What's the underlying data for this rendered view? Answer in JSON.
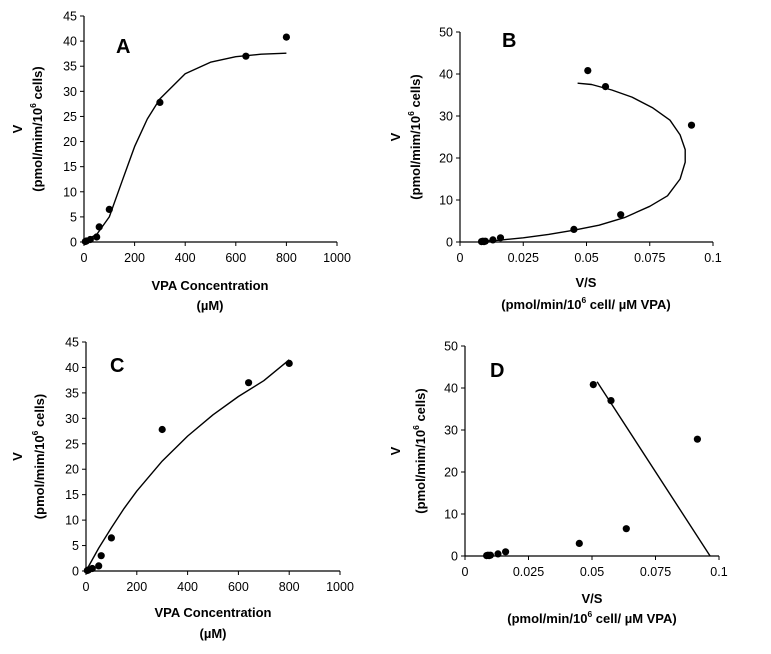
{
  "chart_data": [
    {
      "panel": "A",
      "type": "scatter",
      "letter": "A",
      "xlabel": {
        "main": "VPA Concentration",
        "unit": "(µM)"
      },
      "ylabel": {
        "name": "V",
        "unit_pre": "(pmol/mim/10",
        "unit_sup": "6",
        "unit_post": " cells)"
      },
      "xlim": [
        0,
        1000
      ],
      "ylim": [
        0,
        45
      ],
      "xticks": [
        0,
        200,
        400,
        600,
        800,
        1000
      ],
      "yticks": [
        0,
        5,
        10,
        15,
        20,
        25,
        30,
        35,
        40,
        45
      ],
      "points": [
        [
          5,
          0.1
        ],
        [
          10,
          0.2
        ],
        [
          25,
          0.5
        ],
        [
          50,
          1.0
        ],
        [
          60,
          3.0
        ],
        [
          100,
          6.5
        ],
        [
          300,
          27.8
        ],
        [
          640,
          37.0
        ],
        [
          800,
          40.8
        ]
      ],
      "fit_curve": [
        [
          0,
          0.2
        ],
        [
          50,
          1.5
        ],
        [
          100,
          5
        ],
        [
          150,
          12
        ],
        [
          200,
          19
        ],
        [
          250,
          24.5
        ],
        [
          300,
          28.5
        ],
        [
          400,
          33.5
        ],
        [
          500,
          35.8
        ],
        [
          600,
          36.9
        ],
        [
          700,
          37.4
        ],
        [
          800,
          37.6
        ]
      ]
    },
    {
      "panel": "B",
      "type": "scatter",
      "letter": "B",
      "xlabel": {
        "main": "V/S",
        "unit_pre": "(pmol/min/10",
        "unit_sup": "6",
        "unit_post": " cell/ µM VPA)"
      },
      "ylabel": {
        "name": "V",
        "unit_pre": "(pmol/mim/10",
        "unit_sup": "6",
        "unit_post": " cells)"
      },
      "xlim": [
        0,
        0.1
      ],
      "ylim": [
        0,
        50
      ],
      "xticks": [
        0,
        0.025,
        0.05,
        0.075,
        0.1
      ],
      "yticks": [
        0,
        10,
        20,
        30,
        40,
        50
      ],
      "points": [
        [
          0.0085,
          0.1
        ],
        [
          0.009,
          0.2
        ],
        [
          0.0095,
          0.1
        ],
        [
          0.01,
          0.2
        ],
        [
          0.013,
          0.5
        ],
        [
          0.016,
          1.0
        ],
        [
          0.045,
          3.0
        ],
        [
          0.0505,
          40.8
        ],
        [
          0.0575,
          37.0
        ],
        [
          0.0915,
          27.8
        ],
        [
          0.0635,
          6.5
        ]
      ],
      "fit_curve": [
        [
          0.008,
          0.2
        ],
        [
          0.015,
          0.4
        ],
        [
          0.025,
          1.0
        ],
        [
          0.035,
          1.8
        ],
        [
          0.045,
          2.8
        ],
        [
          0.055,
          4.0
        ],
        [
          0.065,
          5.8
        ],
        [
          0.075,
          8.5
        ],
        [
          0.082,
          11
        ],
        [
          0.087,
          15
        ],
        [
          0.089,
          19
        ],
        [
          0.089,
          22
        ],
        [
          0.087,
          25.5
        ],
        [
          0.083,
          29
        ],
        [
          0.076,
          32
        ],
        [
          0.068,
          34.5
        ],
        [
          0.06,
          36.2
        ],
        [
          0.052,
          37.5
        ],
        [
          0.0465,
          37.8
        ]
      ]
    },
    {
      "panel": "C",
      "type": "scatter",
      "letter": "C",
      "xlabel": {
        "main": "VPA Concentration",
        "unit": "(µM)"
      },
      "ylabel": {
        "name": "V",
        "unit_pre": "(pmol/mim/10",
        "unit_sup": "6",
        "unit_post": " cells)"
      },
      "xlim": [
        0,
        1000
      ],
      "ylim": [
        0,
        45
      ],
      "xticks": [
        0,
        200,
        400,
        600,
        800,
        1000
      ],
      "yticks": [
        0,
        5,
        10,
        15,
        20,
        25,
        30,
        35,
        40,
        45
      ],
      "points": [
        [
          5,
          0.1
        ],
        [
          10,
          0.2
        ],
        [
          25,
          0.5
        ],
        [
          50,
          1.0
        ],
        [
          60,
          3.0
        ],
        [
          100,
          6.5
        ],
        [
          300,
          27.8
        ],
        [
          640,
          37.0
        ],
        [
          800,
          40.8
        ]
      ],
      "fit_curve": [
        [
          0,
          0
        ],
        [
          50,
          4.5
        ],
        [
          100,
          8.5
        ],
        [
          150,
          12.3
        ],
        [
          200,
          15.7
        ],
        [
          300,
          21.6
        ],
        [
          400,
          26.5
        ],
        [
          500,
          30.7
        ],
        [
          600,
          34.3
        ],
        [
          700,
          37.4
        ],
        [
          800,
          41.5
        ]
      ]
    },
    {
      "panel": "D",
      "type": "scatter",
      "letter": "D",
      "xlabel": {
        "main": "V/S",
        "unit_pre": "(pmol/min/10",
        "unit_sup": "6",
        "unit_post": " cell/ µM VPA)"
      },
      "ylabel": {
        "name": "V",
        "unit_pre": "(pmol/mim/10",
        "unit_sup": "6",
        "unit_post": " cells)"
      },
      "xlim": [
        0,
        0.1
      ],
      "ylim": [
        0,
        50
      ],
      "xticks": [
        0,
        0.025,
        0.05,
        0.075,
        0.1
      ],
      "yticks": [
        0,
        10,
        20,
        30,
        40,
        50
      ],
      "points": [
        [
          0.0085,
          0.1
        ],
        [
          0.009,
          0.2
        ],
        [
          0.0095,
          0.1
        ],
        [
          0.01,
          0.2
        ],
        [
          0.013,
          0.5
        ],
        [
          0.016,
          1.0
        ],
        [
          0.045,
          3.0
        ],
        [
          0.0505,
          40.8
        ],
        [
          0.0575,
          37.0
        ],
        [
          0.0915,
          27.8
        ],
        [
          0.0635,
          6.5
        ]
      ],
      "fit_curve": [
        [
          0.052,
          41.5
        ],
        [
          0.0965,
          0
        ]
      ]
    }
  ]
}
